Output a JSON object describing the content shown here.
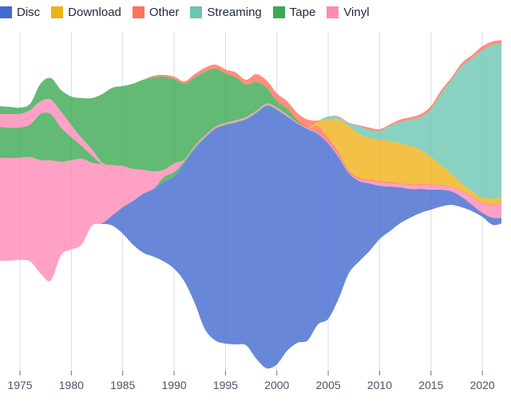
{
  "legend": [
    {
      "label": "Disc",
      "color": "#4269d0"
    },
    {
      "label": "Download",
      "color": "#efb118"
    },
    {
      "label": "Other",
      "color": "#ff725c"
    },
    {
      "label": "Streaming",
      "color": "#6cc5b0"
    },
    {
      "label": "Tape",
      "color": "#3ca951"
    },
    {
      "label": "Vinyl",
      "color": "#ff8ab7"
    }
  ],
  "chart_data": {
    "type": "area",
    "subtype": "streamgraph",
    "title": "",
    "xlabel": "",
    "ylabel": "",
    "xlim": [
      1973,
      2022
    ],
    "x_ticks": [
      "1975",
      "1980",
      "1985",
      "1990",
      "1995",
      "2000",
      "2005",
      "2010",
      "2015",
      "2020"
    ],
    "grid": "vertical",
    "legend_position": "top-left",
    "x": [
      1973,
      1974,
      1975,
      1976,
      1977,
      1978,
      1979,
      1980,
      1981,
      1982,
      1983,
      1984,
      1985,
      1986,
      1987,
      1988,
      1989,
      1990,
      1991,
      1992,
      1993,
      1994,
      1995,
      1996,
      1997,
      1998,
      1999,
      2000,
      2001,
      2002,
      2003,
      2004,
      2005,
      2006,
      2007,
      2008,
      2009,
      2010,
      2011,
      2012,
      2013,
      2014,
      2015,
      2016,
      2017,
      2018,
      2019,
      2020,
      2021,
      2022
    ],
    "series": [
      {
        "name": "Disc",
        "color": "#4269d0",
        "values": [
          0,
          0,
          0,
          0,
          0,
          0,
          0,
          0,
          0,
          0,
          1,
          13,
          33,
          55,
          74,
          85,
          100,
          115,
          148,
          193,
          240,
          265,
          274,
          278,
          283,
          308,
          329,
          319,
          294,
          275,
          265,
          239,
          220,
          178,
          126,
          101,
          85,
          67,
          56,
          45,
          36,
          30,
          25,
          21,
          17,
          13,
          8,
          5,
          9,
          7
        ]
      },
      {
        "name": "Tape",
        "color": "#3ca951",
        "values": [
          0,
          0,
          0,
          0,
          0,
          0,
          0,
          0,
          0,
          0,
          0,
          0,
          0,
          0,
          0,
          0,
          6,
          6,
          3,
          2,
          1,
          1,
          1,
          1,
          1,
          1,
          1,
          1,
          0,
          0,
          0,
          0,
          0,
          0,
          0,
          0,
          0,
          0,
          0,
          0,
          0,
          0,
          0,
          0,
          0,
          0,
          0,
          0,
          0,
          0
        ]
      },
      {
        "name": "Vinyl",
        "color": "#ff8ab7",
        "values": [
          129,
          129,
          128,
          131,
          142,
          151,
          117,
          112,
          108,
          79,
          74,
          63,
          52,
          40,
          30,
          22,
          9,
          11,
          2,
          2,
          2,
          2,
          2,
          2,
          2,
          2,
          2,
          2,
          2,
          1,
          1,
          1,
          1,
          1,
          1,
          2,
          3,
          4,
          4,
          4,
          5,
          5,
          6,
          5,
          5,
          7,
          10,
          12,
          16,
          18
        ]
      },
      {
        "name": "Tape",
        "color": "#3ca951",
        "values": [
          39,
          38,
          38,
          41,
          58,
          58,
          43,
          29,
          16,
          9,
          0,
          0,
          0,
          0,
          0,
          0,
          0,
          0,
          0,
          0,
          0,
          0,
          0,
          0,
          0,
          0,
          0,
          0,
          0,
          0,
          0,
          0,
          0,
          0,
          0,
          0,
          0,
          0,
          0,
          0,
          0,
          0,
          0,
          0,
          0,
          0,
          0,
          0,
          0,
          0
        ]
      },
      {
        "name": "Vinyl",
        "color": "#ff8ab7",
        "values": [
          16,
          17,
          17,
          18,
          16,
          18,
          20,
          15,
          10,
          8,
          2,
          0,
          0,
          0,
          0,
          0,
          0,
          0,
          0,
          0,
          0,
          0,
          0,
          0,
          0,
          0,
          0,
          0,
          0,
          0,
          0,
          0,
          0,
          0,
          0,
          0,
          0,
          0,
          0,
          0,
          0,
          0,
          0,
          0,
          0,
          0,
          0,
          0,
          0,
          0
        ]
      },
      {
        "name": "Tape",
        "color": "#3ca951",
        "values": [
          10,
          9,
          8,
          8,
          22,
          27,
          27,
          36,
          50,
          64,
          86,
          97,
          100,
          107,
          113,
          118,
          117,
          106,
          95,
          86,
          80,
          73,
          62,
          54,
          41,
          36,
          20,
          8,
          8,
          3,
          1,
          0,
          0,
          0,
          0,
          0,
          0,
          0,
          0,
          0,
          0,
          0,
          0,
          0,
          0,
          0,
          0,
          0,
          0,
          0
        ]
      },
      {
        "name": "Other",
        "color": "#ff725c",
        "values": [
          0,
          0,
          0,
          0,
          0,
          0,
          0,
          0,
          0,
          0,
          0,
          0,
          0,
          0,
          0,
          0,
          0,
          0,
          0,
          0,
          0,
          0,
          0,
          0,
          0,
          0,
          0,
          0,
          0,
          0,
          0,
          9,
          6,
          6,
          3,
          2,
          2,
          2,
          2,
          1,
          1,
          1,
          1,
          1,
          1,
          1,
          1,
          1,
          1,
          1
        ]
      },
      {
        "name": "Download",
        "color": "#efb118",
        "values": [
          0,
          0,
          0,
          0,
          0,
          0,
          0,
          0,
          0,
          0,
          0,
          0,
          0,
          0,
          0,
          0,
          0,
          0,
          0,
          0,
          0,
          0,
          0,
          0,
          0,
          0,
          0,
          0,
          0,
          0,
          0,
          6,
          23,
          40,
          55,
          55,
          52,
          52,
          51,
          50,
          48,
          43,
          34,
          25,
          16,
          9,
          6,
          6,
          7,
          6
        ]
      },
      {
        "name": "Streaming",
        "color": "#6cc5b0",
        "values": [
          0,
          0,
          0,
          0,
          0,
          0,
          0,
          0,
          0,
          0,
          0,
          0,
          0,
          0,
          0,
          0,
          0,
          0,
          0,
          0,
          0,
          0,
          0,
          0,
          0,
          0,
          0,
          0,
          0,
          0,
          0,
          0,
          4,
          3,
          3,
          10,
          10,
          11,
          19,
          27,
          33,
          41,
          60,
          90,
          118,
          147,
          167,
          185,
          193,
          193
        ]
      },
      {
        "name": "Other",
        "color": "#ff725c",
        "values": [
          0,
          0,
          0,
          0,
          0,
          0,
          0,
          0,
          0,
          0,
          0,
          0,
          0,
          0,
          0,
          2,
          2,
          3,
          3,
          4,
          5,
          5,
          5,
          6,
          6,
          10,
          9,
          10,
          9,
          9,
          10,
          1,
          0,
          1,
          1,
          1,
          3,
          2,
          2,
          3,
          3,
          4,
          4,
          4,
          3,
          4,
          4,
          5,
          4,
          5
        ]
      }
    ]
  }
}
